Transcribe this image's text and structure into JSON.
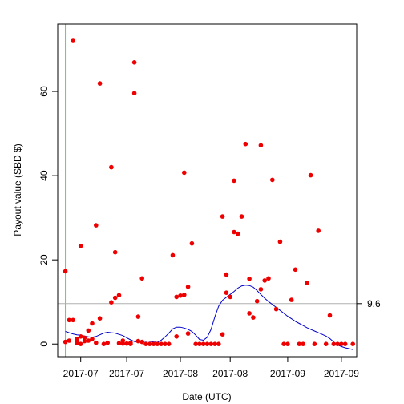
{
  "chart_data": {
    "type": "scatter",
    "title": "",
    "xlabel": "Date (UTC)",
    "ylabel": "Payout value (SBD $)",
    "x_is_date": true,
    "xlim": [
      "2017-06-18",
      "2017-09-04"
    ],
    "ylim": [
      -3,
      76
    ],
    "grid": false,
    "y_ticks": [
      0,
      20,
      40,
      60
    ],
    "x_ticks": [
      {
        "date": "2017-06-24",
        "label": "2017-07"
      },
      {
        "date": "2017-07-06",
        "label": "2017-07"
      },
      {
        "date": "2017-07-20",
        "label": "2017-08"
      },
      {
        "date": "2017-08-02",
        "label": "2017-08"
      },
      {
        "date": "2017-08-17",
        "label": "2017-09"
      },
      {
        "date": "2017-08-31",
        "label": "2017-09"
      }
    ],
    "reference_lines": [
      {
        "orientation": "vertical",
        "x": "2017-06-20",
        "color": "#66cc66"
      },
      {
        "orientation": "horizontal",
        "y": 9.6,
        "label": "9.6",
        "color": "#b0b0b0"
      }
    ],
    "series": [
      {
        "kind": "points",
        "color": "#ee0000",
        "points": [
          [
            "2017-06-20",
            17.3
          ],
          [
            "2017-06-20",
            0.5
          ],
          [
            "2017-06-21",
            5.7
          ],
          [
            "2017-06-21",
            0.8
          ],
          [
            "2017-06-22",
            5.7
          ],
          [
            "2017-06-22",
            72.0
          ],
          [
            "2017-06-23",
            0.6
          ],
          [
            "2017-06-23",
            0.2
          ],
          [
            "2017-06-23",
            1.2
          ],
          [
            "2017-06-24",
            0.0
          ],
          [
            "2017-06-24",
            1.8
          ],
          [
            "2017-06-24",
            23.3
          ],
          [
            "2017-06-25",
            0.7
          ],
          [
            "2017-06-25",
            1.5
          ],
          [
            "2017-06-26",
            3.2
          ],
          [
            "2017-06-26",
            0.8
          ],
          [
            "2017-06-27",
            4.9
          ],
          [
            "2017-06-27",
            1.2
          ],
          [
            "2017-06-28",
            28.2
          ],
          [
            "2017-06-28",
            0.3
          ],
          [
            "2017-06-29",
            61.9
          ],
          [
            "2017-06-29",
            6.1
          ],
          [
            "2017-06-30",
            0.0
          ],
          [
            "2017-07-01",
            0.3
          ],
          [
            "2017-07-02",
            42.0
          ],
          [
            "2017-07-02",
            9.9
          ],
          [
            "2017-07-03",
            21.8
          ],
          [
            "2017-07-03",
            11.0
          ],
          [
            "2017-07-04",
            11.6
          ],
          [
            "2017-07-04",
            0.2
          ],
          [
            "2017-07-05",
            0.8
          ],
          [
            "2017-07-05",
            0.1
          ],
          [
            "2017-07-06",
            0.1
          ],
          [
            "2017-07-07",
            0.0
          ],
          [
            "2017-07-07",
            0.3
          ],
          [
            "2017-07-08",
            66.9
          ],
          [
            "2017-07-08",
            59.6
          ],
          [
            "2017-07-09",
            6.5
          ],
          [
            "2017-07-09",
            0.7
          ],
          [
            "2017-07-10",
            15.6
          ],
          [
            "2017-07-10",
            0.5
          ],
          [
            "2017-07-11",
            0.0
          ],
          [
            "2017-07-12",
            0.0
          ],
          [
            "2017-07-13",
            0.0
          ],
          [
            "2017-07-14",
            0.0
          ],
          [
            "2017-07-15",
            0.0
          ],
          [
            "2017-07-16",
            0.0
          ],
          [
            "2017-07-17",
            0.0
          ],
          [
            "2017-07-18",
            21.1
          ],
          [
            "2017-07-19",
            11.2
          ],
          [
            "2017-07-19",
            1.8
          ],
          [
            "2017-07-20",
            11.5
          ],
          [
            "2017-07-21",
            40.7
          ],
          [
            "2017-07-21",
            11.7
          ],
          [
            "2017-07-22",
            13.6
          ],
          [
            "2017-07-22",
            2.5
          ],
          [
            "2017-07-23",
            23.9
          ],
          [
            "2017-07-24",
            0.0
          ],
          [
            "2017-07-25",
            0.0
          ],
          [
            "2017-07-26",
            0.0
          ],
          [
            "2017-07-27",
            0.0
          ],
          [
            "2017-07-28",
            0.0
          ],
          [
            "2017-07-29",
            0.0
          ],
          [
            "2017-07-30",
            0.0
          ],
          [
            "2017-07-31",
            30.3
          ],
          [
            "2017-07-31",
            2.3
          ],
          [
            "2017-08-01",
            16.5
          ],
          [
            "2017-08-01",
            12.2
          ],
          [
            "2017-08-02",
            11.2
          ],
          [
            "2017-08-03",
            38.8
          ],
          [
            "2017-08-03",
            26.6
          ],
          [
            "2017-08-04",
            26.2
          ],
          [
            "2017-08-05",
            30.3
          ],
          [
            "2017-08-06",
            47.5
          ],
          [
            "2017-08-07",
            15.5
          ],
          [
            "2017-08-07",
            7.3
          ],
          [
            "2017-08-08",
            6.3
          ],
          [
            "2017-08-09",
            10.2
          ],
          [
            "2017-08-10",
            47.2
          ],
          [
            "2017-08-10",
            13.0
          ],
          [
            "2017-08-11",
            15.1
          ],
          [
            "2017-08-12",
            15.6
          ],
          [
            "2017-08-13",
            39.0
          ],
          [
            "2017-08-14",
            8.3
          ],
          [
            "2017-08-15",
            24.3
          ],
          [
            "2017-08-16",
            0.0
          ],
          [
            "2017-08-17",
            0.0
          ],
          [
            "2017-08-18",
            10.5
          ],
          [
            "2017-08-19",
            17.7
          ],
          [
            "2017-08-20",
            0.0
          ],
          [
            "2017-08-21",
            0.0
          ],
          [
            "2017-08-22",
            14.5
          ],
          [
            "2017-08-23",
            40.1
          ],
          [
            "2017-08-24",
            0.0
          ],
          [
            "2017-08-25",
            26.9
          ],
          [
            "2017-08-27",
            0.0
          ],
          [
            "2017-08-28",
            6.8
          ],
          [
            "2017-08-29",
            0.0
          ],
          [
            "2017-08-30",
            0.0
          ],
          [
            "2017-08-31",
            0.0
          ],
          [
            "2017-09-01",
            0.0
          ],
          [
            "2017-09-03",
            0.0
          ]
        ]
      },
      {
        "kind": "line",
        "color": "#0000cc",
        "points": [
          [
            "2017-06-20",
            3.0
          ],
          [
            "2017-06-21",
            2.7
          ],
          [
            "2017-06-22",
            2.4
          ],
          [
            "2017-06-23",
            2.2
          ],
          [
            "2017-06-24",
            2.1
          ],
          [
            "2017-06-25",
            1.9
          ],
          [
            "2017-06-26",
            1.7
          ],
          [
            "2017-06-27",
            1.6
          ],
          [
            "2017-06-28",
            1.8
          ],
          [
            "2017-06-29",
            2.2
          ],
          [
            "2017-06-30",
            2.6
          ],
          [
            "2017-07-01",
            2.8
          ],
          [
            "2017-07-02",
            2.7
          ],
          [
            "2017-07-03",
            2.6
          ],
          [
            "2017-07-04",
            2.3
          ],
          [
            "2017-07-05",
            2.0
          ],
          [
            "2017-07-06",
            1.5
          ],
          [
            "2017-07-07",
            1.0
          ],
          [
            "2017-07-08",
            0.6
          ],
          [
            "2017-07-09",
            0.5
          ],
          [
            "2017-07-10",
            0.6
          ],
          [
            "2017-07-11",
            0.7
          ],
          [
            "2017-07-12",
            0.7
          ],
          [
            "2017-07-13",
            0.5
          ],
          [
            "2017-07-14",
            0.4
          ],
          [
            "2017-07-15",
            0.9
          ],
          [
            "2017-07-16",
            1.7
          ],
          [
            "2017-07-17",
            2.6
          ],
          [
            "2017-07-18",
            3.6
          ],
          [
            "2017-07-19",
            4.0
          ],
          [
            "2017-07-20",
            4.0
          ],
          [
            "2017-07-21",
            3.8
          ],
          [
            "2017-07-22",
            3.5
          ],
          [
            "2017-07-23",
            3.0
          ],
          [
            "2017-07-24",
            2.1
          ],
          [
            "2017-07-25",
            1.1
          ],
          [
            "2017-07-26",
            0.9
          ],
          [
            "2017-07-27",
            1.6
          ],
          [
            "2017-07-28",
            3.5
          ],
          [
            "2017-07-29",
            6.5
          ],
          [
            "2017-07-30",
            9.0
          ],
          [
            "2017-07-31",
            10.4
          ],
          [
            "2017-08-01",
            11.1
          ],
          [
            "2017-08-02",
            11.8
          ],
          [
            "2017-08-03",
            12.5
          ],
          [
            "2017-08-04",
            13.3
          ],
          [
            "2017-08-05",
            13.8
          ],
          [
            "2017-08-06",
            14.0
          ],
          [
            "2017-08-07",
            13.9
          ],
          [
            "2017-08-08",
            13.5
          ],
          [
            "2017-08-09",
            12.7
          ],
          [
            "2017-08-10",
            11.8
          ],
          [
            "2017-08-11",
            10.9
          ],
          [
            "2017-08-12",
            10.1
          ],
          [
            "2017-08-13",
            9.4
          ],
          [
            "2017-08-14",
            8.7
          ],
          [
            "2017-08-15",
            8.0
          ],
          [
            "2017-08-16",
            7.3
          ],
          [
            "2017-08-17",
            6.6
          ],
          [
            "2017-08-18",
            6.0
          ],
          [
            "2017-08-19",
            5.4
          ],
          [
            "2017-08-20",
            4.9
          ],
          [
            "2017-08-21",
            4.4
          ],
          [
            "2017-08-22",
            3.9
          ],
          [
            "2017-08-23",
            3.5
          ],
          [
            "2017-08-24",
            3.1
          ],
          [
            "2017-08-25",
            2.7
          ],
          [
            "2017-08-26",
            2.3
          ],
          [
            "2017-08-27",
            1.9
          ],
          [
            "2017-08-28",
            1.3
          ],
          [
            "2017-08-29",
            0.5
          ],
          [
            "2017-08-30",
            -0.2
          ],
          [
            "2017-08-31",
            -0.6
          ],
          [
            "2017-09-01",
            -0.9
          ],
          [
            "2017-09-02",
            -1.1
          ],
          [
            "2017-09-03",
            -1.3
          ]
        ]
      }
    ]
  }
}
